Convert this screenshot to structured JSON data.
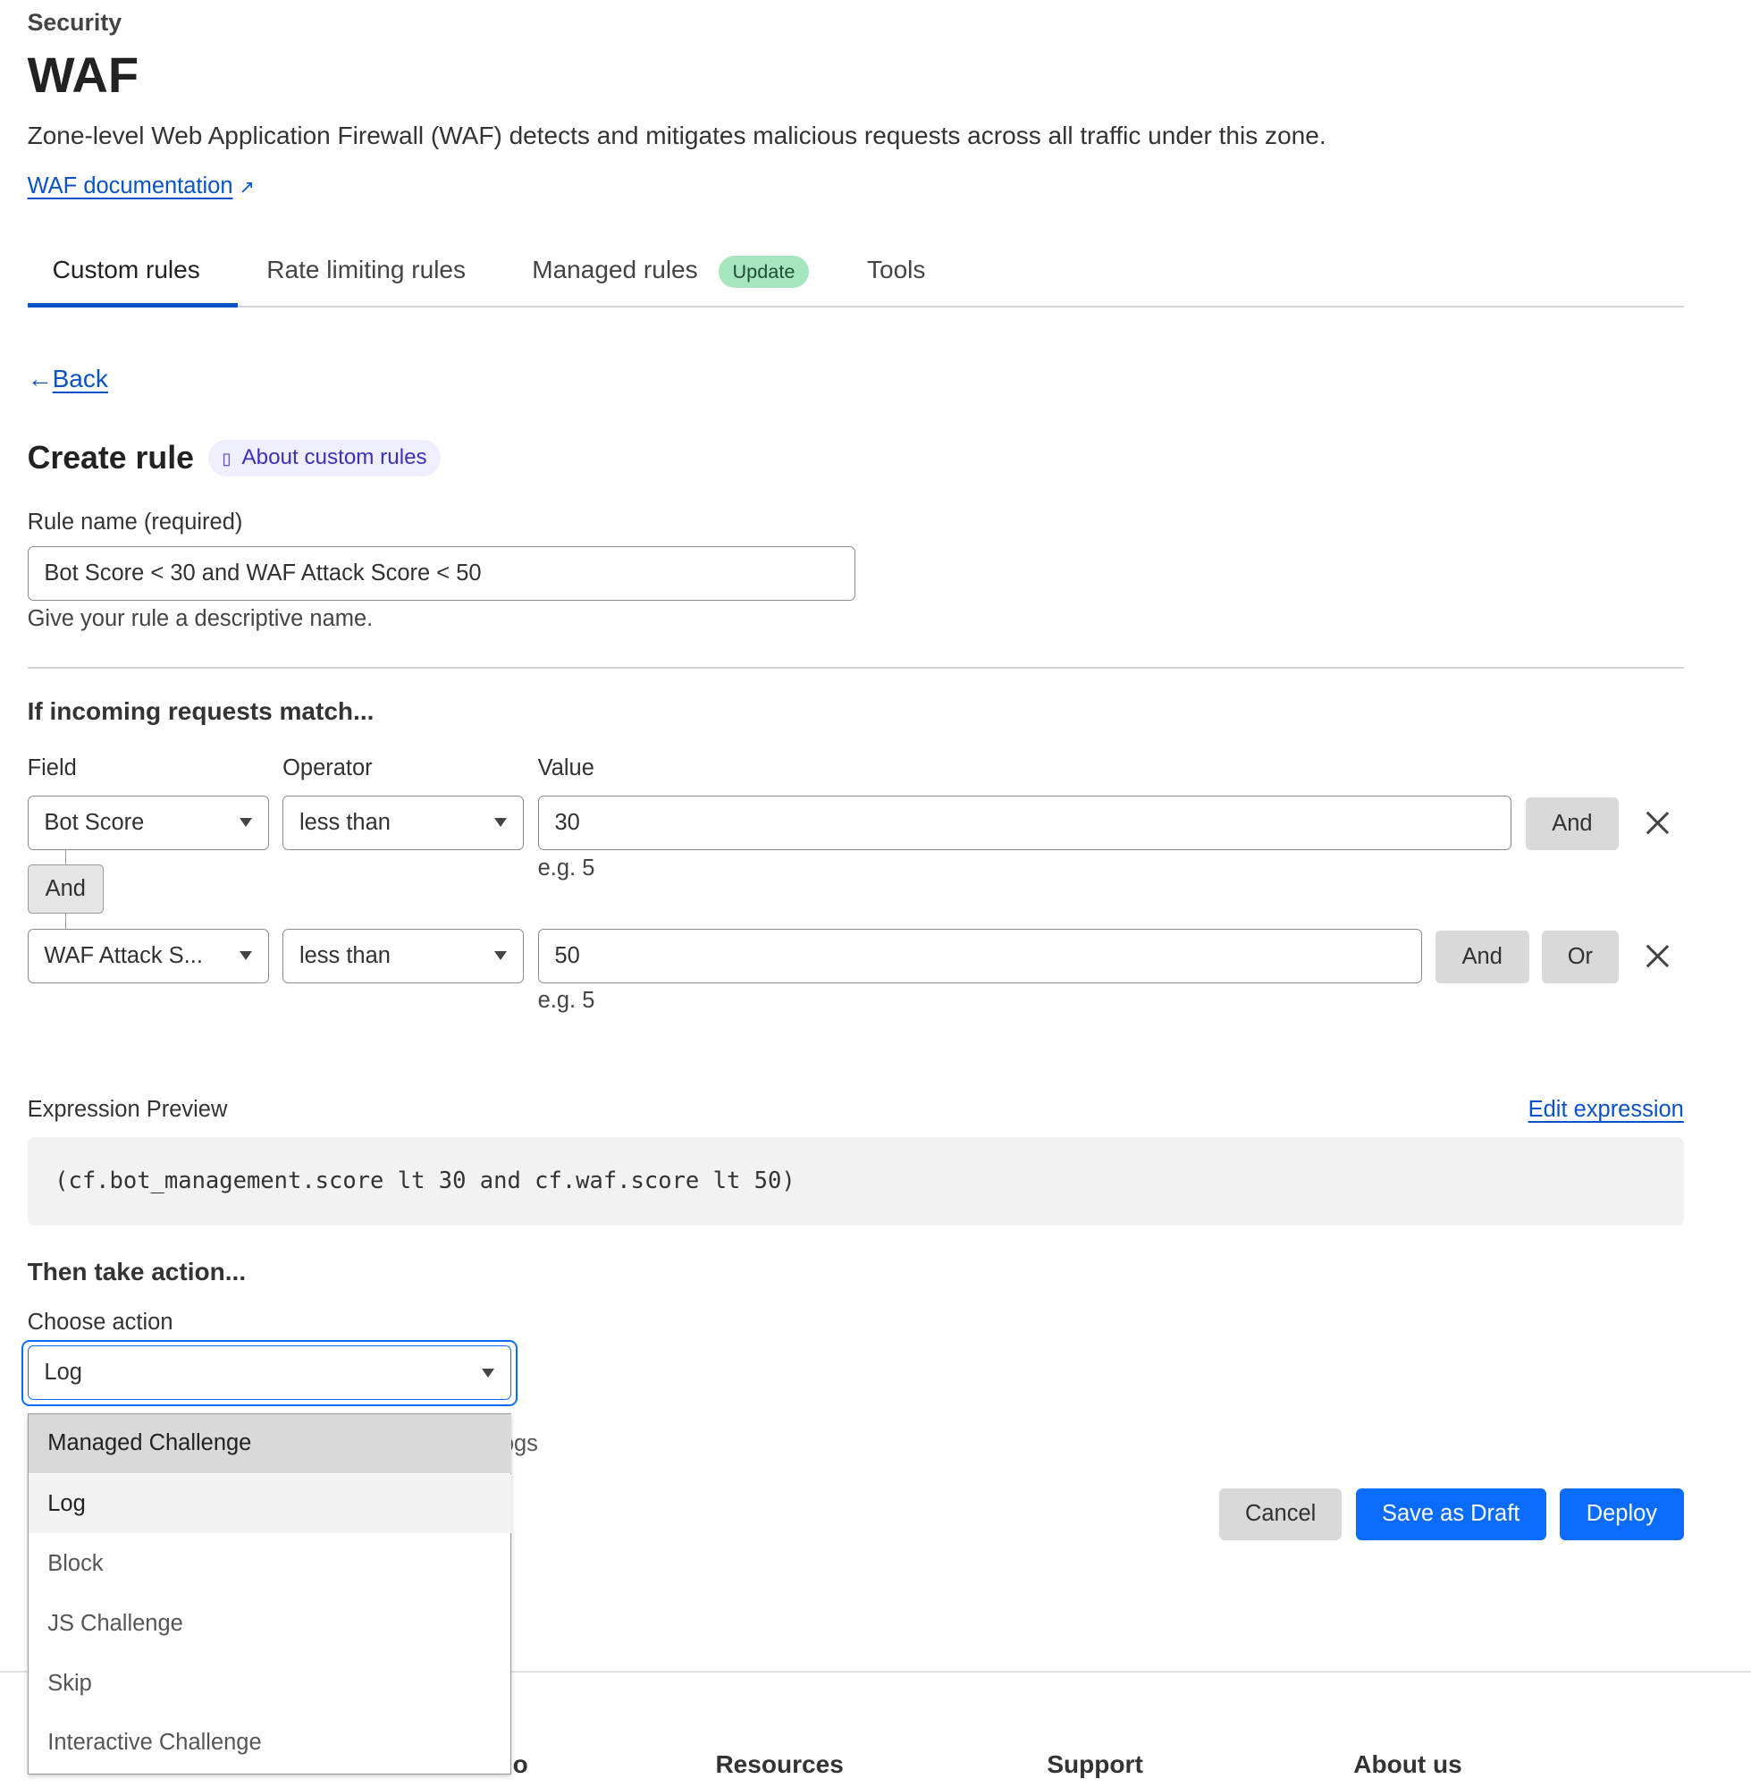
{
  "header": {
    "section": "Security",
    "title": "WAF",
    "description": "Zone-level Web Application Firewall (WAF) detects and mitigates malicious requests across all traffic under this zone.",
    "doc_link": "WAF documentation"
  },
  "tabs": [
    {
      "label": "Custom rules",
      "active": true
    },
    {
      "label": "Rate limiting rules"
    },
    {
      "label": "Managed rules",
      "badge": "Update"
    },
    {
      "label": "Tools"
    }
  ],
  "back": "Back",
  "create": {
    "title": "Create rule",
    "about": "About custom rules"
  },
  "rule_name": {
    "label": "Rule name (required)",
    "value": "Bot Score < 30 and WAF Attack Score < 50",
    "help": "Give your rule a descriptive name."
  },
  "match": {
    "heading": "If incoming requests match...",
    "field_label": "Field",
    "operator_label": "Operator",
    "value_label": "Value",
    "rows": [
      {
        "field": "Bot Score",
        "operator": "less than",
        "value": "30",
        "hint": "e.g. 5",
        "and": "And"
      },
      {
        "field": "WAF Attack S...",
        "operator": "less than",
        "value": "50",
        "hint": "e.g. 5",
        "and": "And",
        "or": "Or"
      }
    ],
    "connector": "And"
  },
  "expression": {
    "label": "Expression Preview",
    "edit": "Edit expression",
    "code": "(cf.bot_management.score lt 30 and cf.waf.score lt 50)"
  },
  "action": {
    "heading": "Then take action...",
    "label": "Choose action",
    "selected": "Log",
    "behind_text": "ogs",
    "options": [
      "Managed Challenge",
      "Log",
      "Block",
      "JS Challenge",
      "Skip",
      "Interactive Challenge"
    ],
    "hovered": "Managed Challenge"
  },
  "buttons": {
    "cancel": "Cancel",
    "draft": "Save as Draft",
    "deploy": "Deploy"
  },
  "footer": {
    "partial": "o",
    "cols": [
      "Resources",
      "Support",
      "About us"
    ]
  },
  "colors": {
    "accent": "#0a6cff",
    "link": "#0a52c6",
    "badge": "#a6e6bf"
  }
}
